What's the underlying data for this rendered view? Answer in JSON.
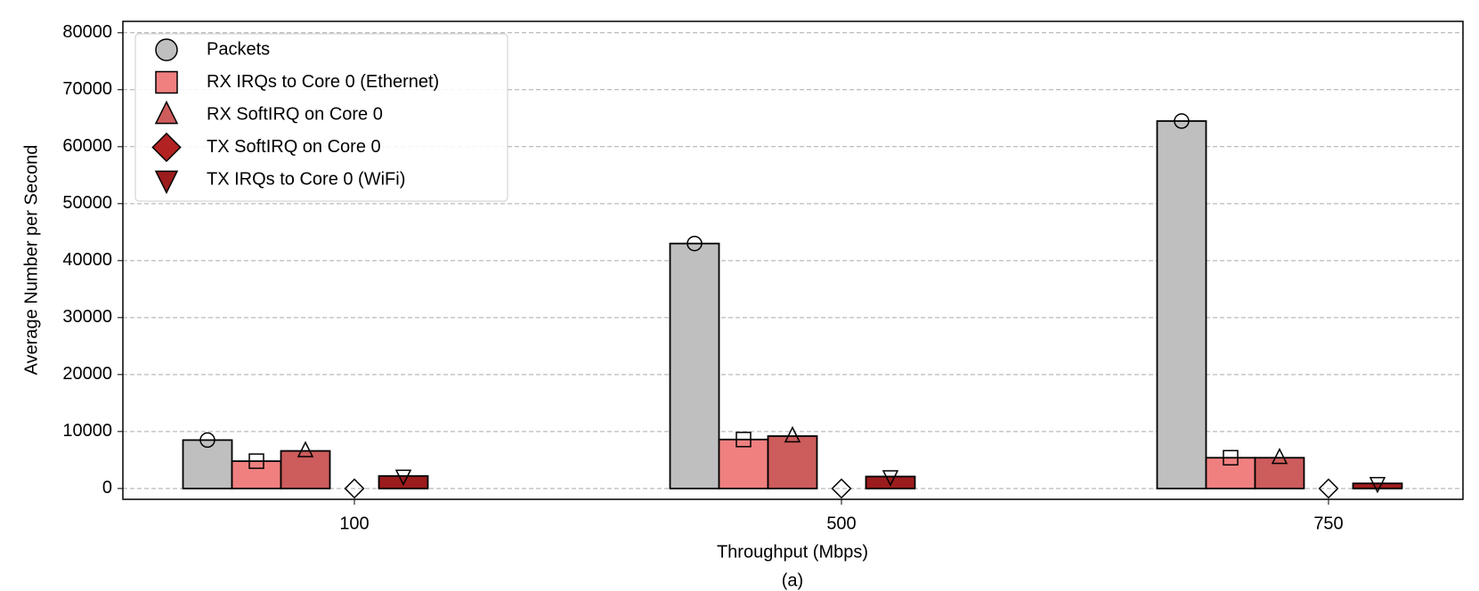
{
  "chart_data": {
    "type": "bar",
    "x_label": "Throughput (Mbps)",
    "y_label": "Average Number per Second",
    "caption": "(a)",
    "categories": [
      "100",
      "500",
      "750"
    ],
    "series": [
      {
        "name": "Packets",
        "color": "#bfbfbf",
        "marker": "circle",
        "values": [
          8500,
          43000,
          64500
        ]
      },
      {
        "name": "RX IRQs to Core 0 (Ethernet)",
        "color": "#f08080",
        "marker": "square",
        "values": [
          4800,
          8600,
          5400
        ]
      },
      {
        "name": "RX SoftIRQ on Core 0",
        "color": "#cd5c5c",
        "marker": "triangle-up",
        "values": [
          6600,
          9200,
          5400
        ]
      },
      {
        "name": "TX SoftIRQ on Core 0",
        "color": "#b22222",
        "marker": "diamond",
        "values": [
          0,
          0,
          0
        ]
      },
      {
        "name": "TX IRQs to Core 0 (WiFi)",
        "color": "#9b1c1c",
        "marker": "triangle-down",
        "values": [
          2200,
          2100,
          900
        ]
      }
    ],
    "ylim": [
      -1900,
      82000
    ],
    "yticks": [
      0,
      10000,
      20000,
      30000,
      40000,
      50000,
      60000,
      70000,
      80000
    ],
    "grid": true,
    "legend": "upper left"
  }
}
